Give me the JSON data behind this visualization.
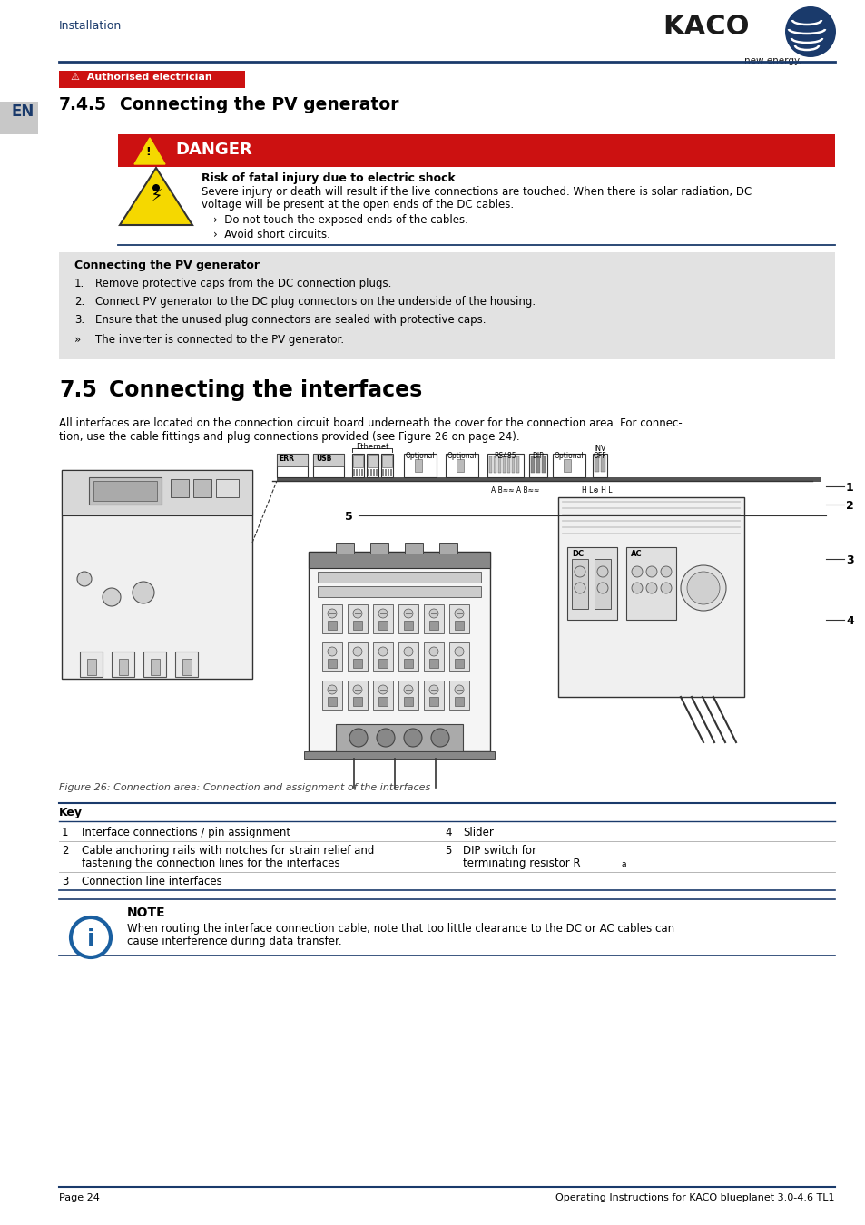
{
  "page_bg": "#ffffff",
  "header_text": "Installation",
  "header_color": "#1a3a6b",
  "kaco_text": "KACO",
  "kaco_subtext": "new energy.",
  "blue_line_color": "#1a3a6b",
  "auth_label": "⚠  Authorised electrician",
  "auth_bg": "#cc1111",
  "auth_text_color": "#ffffff",
  "en_label": "EN",
  "en_bg": "#c8c8c8",
  "section_745_num": "7.4.5",
  "section_745_title": "Connecting the PV generator",
  "danger_bg": "#cc1111",
  "danger_text": "DANGER",
  "danger_text_color": "#ffffff",
  "danger_title": "Risk of fatal injury due to electric shock",
  "danger_body1": "Severe injury or death will result if the live connections are touched. When there is solar radiation, DC",
  "danger_body2": "voltage will be present at the open ends of the DC cables.",
  "danger_bullet1": "›  Do not touch the exposed ends of the cables.",
  "danger_bullet2": "›  Avoid short circuits.",
  "pv_box_title": "Connecting the PV generator",
  "pv_box_bg": "#e2e2e2",
  "pv_step1": "Remove protective caps from the DC connection plugs.",
  "pv_step2": "Connect PV generator to the DC plug connectors on the underside of the housing.",
  "pv_step3": "Ensure that the unused plug connectors are sealed with protective caps.",
  "pv_result": "The inverter is connected to the PV generator.",
  "section_75_num": "7.5",
  "section_75_title": "Connecting the interfaces",
  "body1": "All interfaces are located on the connection circuit board underneath the cover for the connection area. For connec-",
  "body2": "tion, use the cable fittings and plug connections provided (see Figure 26 on page 24).",
  "fig_caption": "Figure 26: Connection area: Connection and assignment of the interfaces",
  "key_label": "Key",
  "k1_num": "1",
  "k1_text": "Interface connections / pin assignment",
  "k4_num": "4",
  "k4_text": "Slider",
  "k2_num": "2",
  "k2_text1": "Cable anchoring rails with notches for strain relief and",
  "k2_text2": "fastening the connection lines for the interfaces",
  "k5_num": "5",
  "k5_text1": "DIP switch for",
  "k5_text2": "terminating resistor R",
  "k5_sub": "a",
  "k3_num": "3",
  "k3_text": "Connection line interfaces",
  "note_title": "NOTE",
  "note_body1": "When routing the interface connection cable, note that too little clearance to the DC or AC cables can",
  "note_body2": "cause interference during data transfer.",
  "footer_left": "Page 24",
  "footer_right": "Operating Instructions for KACO blueplanet 3.0-4.6 TL1"
}
